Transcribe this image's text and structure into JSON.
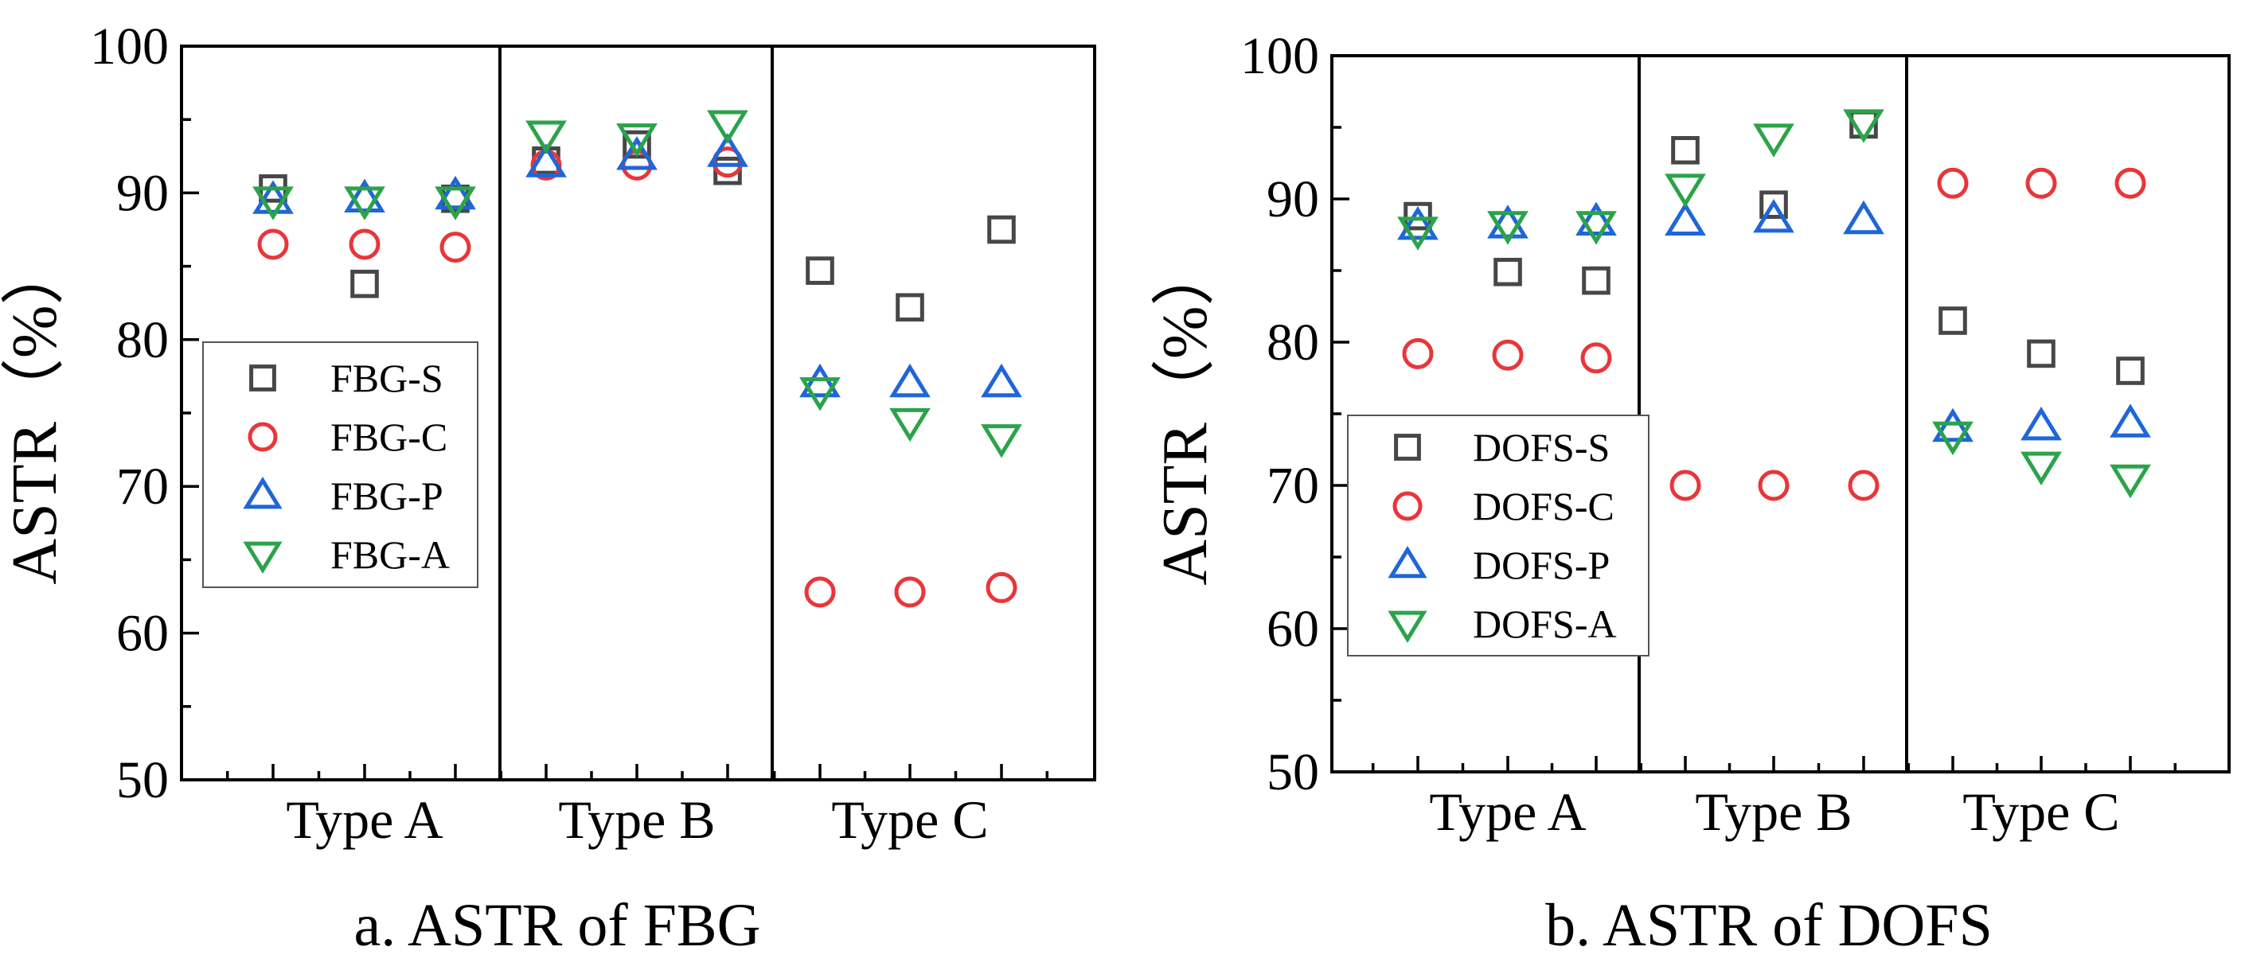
{
  "colors": {
    "S": "#474747",
    "C": "#e8363a",
    "P": "#1f66d8",
    "A": "#2ba34a"
  },
  "chart_data": [
    {
      "type": "scatter",
      "caption": "a. ASTR of FBG",
      "ylabel": "ASTR（%）",
      "ylim": [
        50,
        100
      ],
      "yticks": [
        50,
        60,
        70,
        80,
        90,
        100
      ],
      "groups": [
        "Type A",
        "Type B",
        "Type C"
      ],
      "legend_position": "left-middle",
      "series": [
        {
          "name": "FBG-S",
          "key": "S",
          "marker": "square",
          "values": [
            [
              90.3,
              83.8,
              89.6
            ],
            [
              92.2,
              93.3,
              91.5
            ],
            [
              84.7,
              82.2,
              87.5
            ]
          ]
        },
        {
          "name": "FBG-C",
          "key": "C",
          "marker": "circle",
          "values": [
            [
              86.5,
              86.5,
              86.3
            ],
            [
              91.9,
              91.9,
              92.1
            ],
            [
              62.8,
              62.8,
              63.1
            ]
          ]
        },
        {
          "name": "FBG-P",
          "key": "P",
          "marker": "triangle-up",
          "values": [
            [
              89.5,
              89.6,
              89.8
            ],
            [
              92.0,
              92.5,
              92.7
            ],
            [
              77.0,
              77.0,
              77.0
            ]
          ]
        },
        {
          "name": "FBG-A",
          "key": "A",
          "marker": "triangle-down",
          "values": [
            [
              89.5,
              89.5,
              89.5
            ],
            [
              94.0,
              93.8,
              94.7
            ],
            [
              76.5,
              74.4,
              73.3
            ]
          ]
        }
      ]
    },
    {
      "type": "scatter",
      "caption": "b. ASTR of DOFS",
      "ylabel": "ASTR（%）",
      "ylim": [
        50,
        100
      ],
      "yticks": [
        50,
        60,
        70,
        80,
        90,
        100
      ],
      "groups": [
        "Type A",
        "Type B",
        "Type C"
      ],
      "legend_position": "left-middle",
      "series": [
        {
          "name": "DOFS-S",
          "key": "S",
          "marker": "square",
          "values": [
            [
              88.8,
              84.9,
              84.3
            ],
            [
              93.4,
              89.6,
              95.2
            ],
            [
              81.5,
              79.2,
              78.0
            ]
          ]
        },
        {
          "name": "DOFS-C",
          "key": "C",
          "marker": "circle",
          "values": [
            [
              79.2,
              79.1,
              78.9
            ],
            [
              70.0,
              70.0,
              70.0
            ],
            [
              91.1,
              91.1,
              91.1
            ]
          ]
        },
        {
          "name": "DOFS-P",
          "key": "P",
          "marker": "triangle-up",
          "values": [
            [
              88.1,
              88.2,
              88.4
            ],
            [
              88.4,
              88.6,
              88.5
            ],
            [
              74.0,
              74.1,
              74.3
            ]
          ]
        },
        {
          "name": "DOFS-A",
          "key": "A",
          "marker": "triangle-down",
          "values": [
            [
              87.8,
              88.2,
              88.2
            ],
            [
              90.8,
              94.3,
              95.3
            ],
            [
              73.5,
              71.4,
              70.5
            ]
          ]
        }
      ]
    }
  ]
}
